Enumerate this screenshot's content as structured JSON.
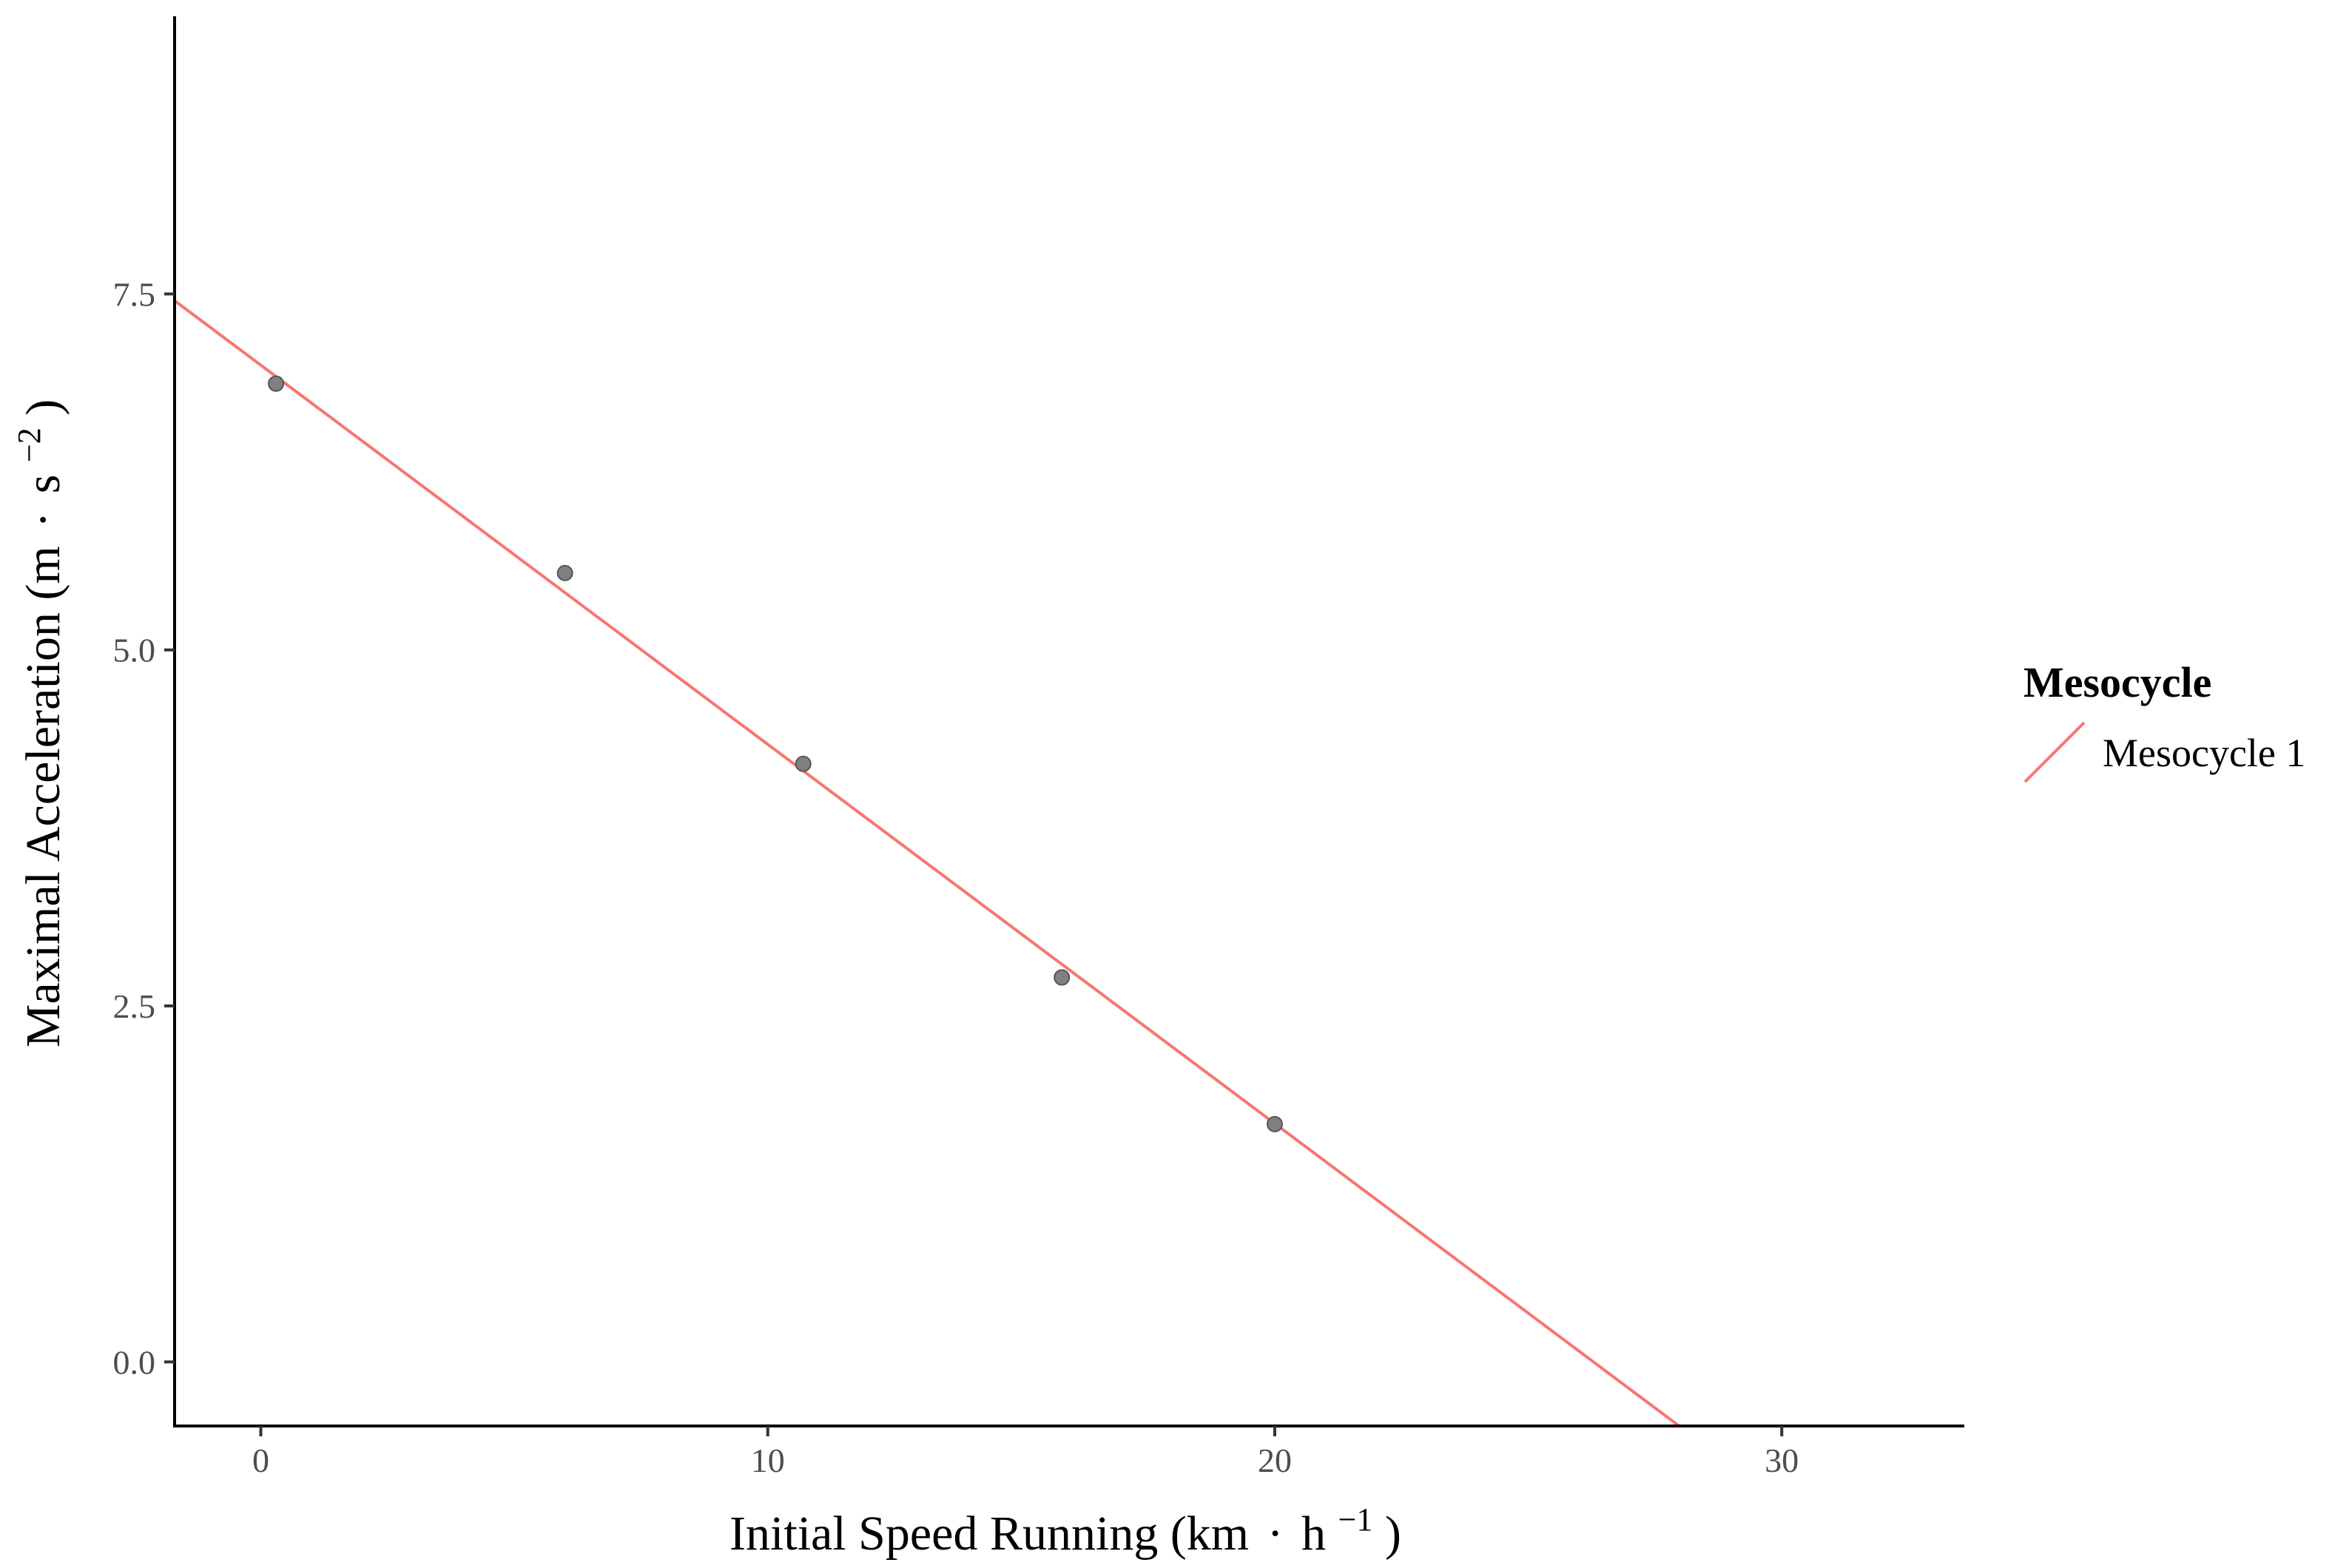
{
  "chart_data": {
    "type": "scatter",
    "title": "",
    "xlabel": {
      "main": "Initial Speed Running (km",
      "dot": "·",
      "unit": "h",
      "exponent": "−1",
      "close": ")"
    },
    "ylabel": {
      "main": "Maximal Acceleration (m",
      "dot": "·",
      "unit": "s",
      "exponent": "−2",
      "close": ")"
    },
    "xlim": [
      -1.7,
      33.6
    ],
    "ylim": [
      -0.45,
      9.45
    ],
    "x_ticks": [
      0,
      10,
      20,
      30
    ],
    "x_tick_labels": [
      "0",
      "10",
      "20",
      "30"
    ],
    "y_ticks": [
      0.0,
      2.5,
      5.0,
      7.5
    ],
    "y_tick_labels": [
      "0.0",
      "2.5",
      "5.0",
      "7.5"
    ],
    "grid": false,
    "points": {
      "color": "#808080",
      "x": [
        0.3,
        6.0,
        10.7,
        15.8,
        20.0
      ],
      "y": [
        6.87,
        5.54,
        4.2,
        2.7,
        1.67
      ]
    },
    "fit_line": {
      "name": "Mesocycle 1",
      "color": "#f8766d",
      "intercept": 7.0,
      "slope": -0.2663,
      "x_range": [
        -1.7,
        27.97
      ]
    },
    "legend": {
      "title": "Mesocycle",
      "position": "right",
      "entries": [
        {
          "label": "Mesocycle 1",
          "color": "#f8766d"
        }
      ]
    }
  }
}
